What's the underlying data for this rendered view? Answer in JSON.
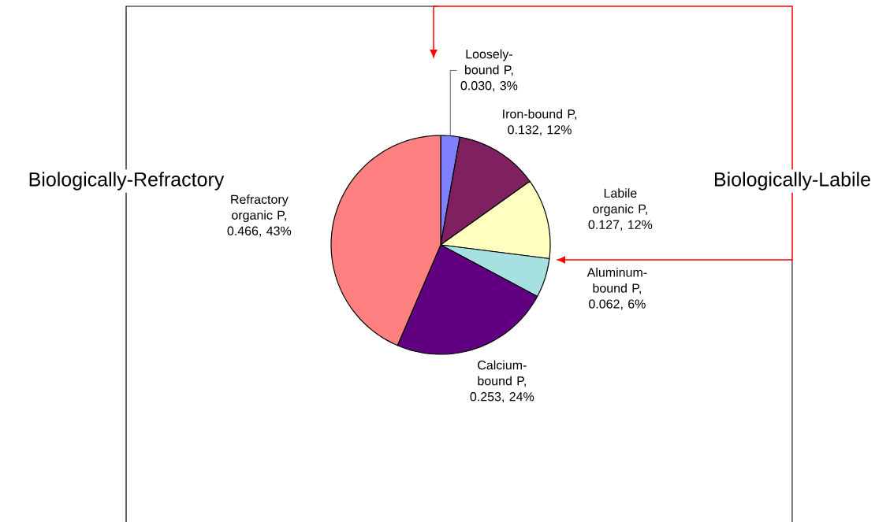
{
  "chart_data": {
    "type": "pie",
    "values": [
      0.03,
      0.132,
      0.127,
      0.062,
      0.253,
      0.466
    ],
    "value_labels": [
      "Loosely-bound P, 0.030, 3%",
      "Iron-bound P, 0.132, 12%",
      "Labile organic P, 0.127, 12%",
      "Aluminum-bound P, 0.062, 6%",
      "Calcium-bound P, 0.253, 24%",
      "Refractory organic P, 0.466, 43%"
    ],
    "colors": [
      "#8080ff",
      "#7f2060",
      "#ffffc0",
      "#a6e0e0",
      "#600080",
      "#ff8080"
    ],
    "annotations": [
      "Biologically-Refractory",
      "Biologically-Labile"
    ]
  }
}
